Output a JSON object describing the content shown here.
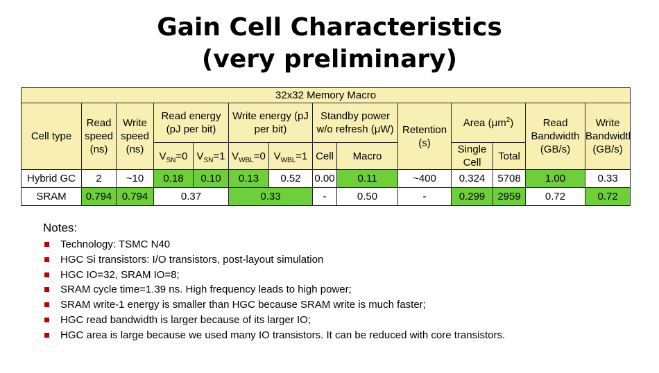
{
  "slide": {
    "title_line1": "Gain Cell Characteristics",
    "title_line2": "(very preliminary)"
  },
  "table": {
    "banner": "32x32 Memory Macro",
    "headers": {
      "cell_type": "Cell type",
      "read_speed": "Read speed (ns)",
      "write_speed": "Write speed (ns)",
      "read_energy": "Read energy (pJ per bit)",
      "write_energy": "Write energy (pJ per bit)",
      "standby_power": "Standby power w/o refresh (μW)",
      "retention": "Retention (s)",
      "area_prefix": "Area (μm",
      "area_sup": "2",
      "area_suffix": ")",
      "read_bw": "Read Bandwidth (GB/s)",
      "write_bw": "Write Bandwidth (GB/s)",
      "vsn0_v": "V",
      "vsn0_sub": "SN",
      "vsn0_eq": "=0",
      "vsn1_v": "V",
      "vsn1_sub": "SN",
      "vsn1_eq": "=1",
      "vwbl0_v": "V",
      "vwbl0_sub": "WBL",
      "vwbl0_eq": "=0",
      "vwbl1_v": "V",
      "vwbl1_sub": "WBL",
      "vwbl1_eq": "=1",
      "cell": "Cell",
      "macro": "Macro",
      "single_cell": "Single Cell",
      "total": "Total"
    },
    "hybrid": {
      "name": "Hybrid GC",
      "read_speed": "2",
      "write_speed": "~10",
      "re_vsn0": "0.18",
      "re_vsn1": "0.10",
      "we_vwbl0": "0.13",
      "we_vwbl1": "0.52",
      "sp_cell": "0.00",
      "sp_macro": "0.11",
      "retention": "~400",
      "area_single": "0.324",
      "area_total": "5708",
      "read_bw": "1.00",
      "write_bw": "0.33"
    },
    "sram": {
      "name": "SRAM",
      "read_speed": "0.794",
      "write_speed": "0.794",
      "read_energy": "0.37",
      "write_energy": "0.33",
      "sp_cell": "-",
      "sp_macro": "0.50",
      "retention": "-",
      "area_single": "0.299",
      "area_total": "2959",
      "read_bw": "0.72",
      "write_bw": "0.72"
    }
  },
  "notes": {
    "title": "Notes:",
    "items": [
      "Technology: TSMC N40",
      "HGC Si transistors: I/O transistors, post-layout simulation",
      "HGC IO=32, SRAM IO=8;",
      "SRAM cycle time=1.39 ns. High frequency leads to high power;",
      "SRAM write-1 energy is smaller than HGC because SRAM write is much faster;",
      "HGC read bandwidth is larger because of its larger IO;",
      "HGC area is large because we used many IO transistors. It can be reduced with core transistors."
    ]
  },
  "colors": {
    "highlight_green": "#6fcf3a",
    "header_yellow": "#ffff00",
    "header_cream": "#f8efb3",
    "bullet_red": "#c00000"
  }
}
